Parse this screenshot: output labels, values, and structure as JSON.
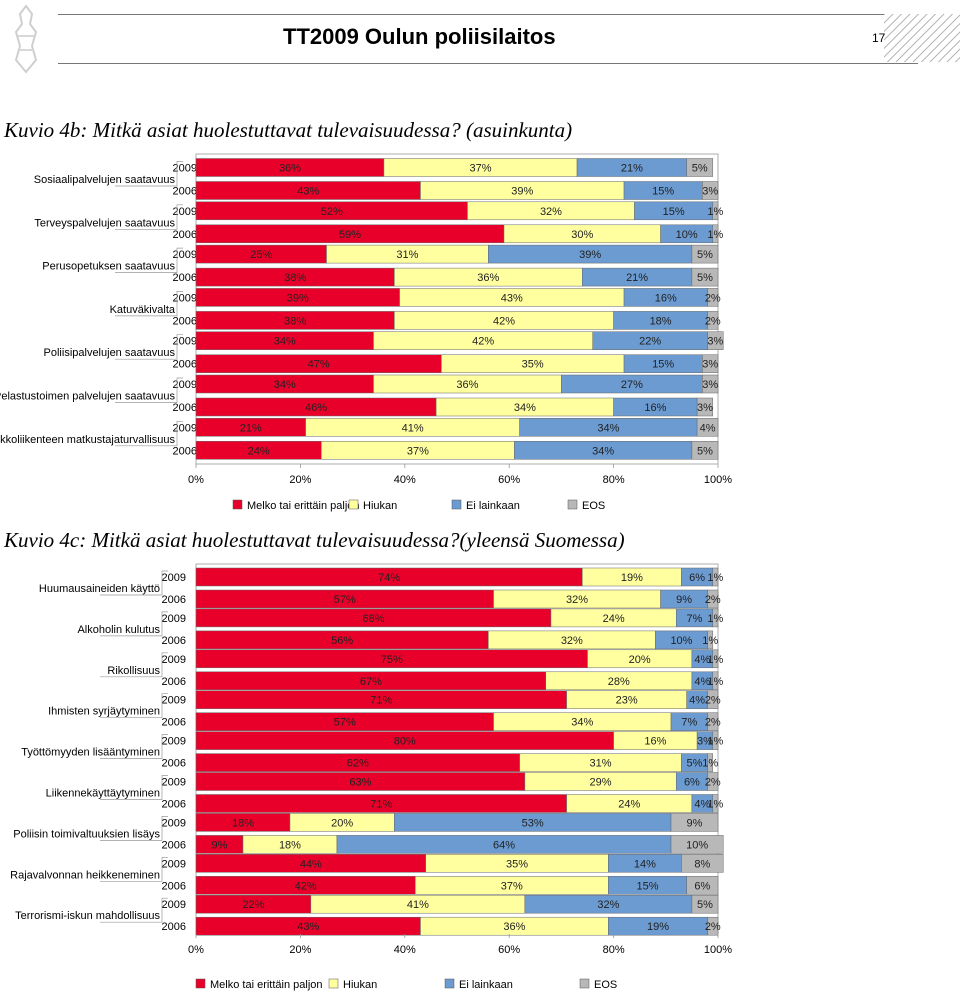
{
  "header": {
    "title": "TT2009 Oulun poliisilaitos",
    "page_number": "17",
    "logo_icon": "police-emblem-icon"
  },
  "charts": [
    {
      "title": "Kuvio 4b: Mitkä asiat huolestuttavat tulevaisuudessa? (asuinkunta)",
      "years": [
        "2009",
        "2006"
      ],
      "legend": [
        "Melko tai erittäin paljon",
        "Hiukan",
        "Ei lainkaan",
        "EOS"
      ]
    },
    {
      "title": "Kuvio 4c: Mitkä asiat huolestuttavat tulevaisuudessa?(yleensä Suomessa)",
      "years": [
        "2009",
        "2006"
      ],
      "legend": [
        "Melko tai erittäin paljon",
        "Hiukan",
        "Ei lainkaan",
        "EOS"
      ]
    }
  ],
  "colors": {
    "very_much": "#e8002a",
    "somewhat": "#ffffa0",
    "not_at_all": "#6b9bd1",
    "eos": "#b8b8b8"
  },
  "chart_data": [
    {
      "type": "bar",
      "orientation": "horizontal",
      "stacked": true,
      "title": "Kuvio 4b: Mitkä asiat huolestuttavat tulevaisuudessa? (asuinkunta)",
      "series_names": [
        "Melko tai erittäin paljon",
        "Hiukan",
        "Ei lainkaan",
        "EOS"
      ],
      "xlim": [
        0,
        100
      ],
      "x_ticks": [
        "0%",
        "20%",
        "40%",
        "60%",
        "80%",
        "100%"
      ],
      "legend_position": "bottom",
      "categories": [
        {
          "name": "Sosiaalipalvelujen saatavuus",
          "rows": [
            {
              "year": "2009",
              "values": [
                36,
                37,
                21,
                5
              ]
            },
            {
              "year": "2006",
              "values": [
                43,
                39,
                15,
                3
              ]
            }
          ]
        },
        {
          "name": "Terveyspalvelujen saatavuus",
          "rows": [
            {
              "year": "2009",
              "values": [
                52,
                32,
                15,
                1
              ]
            },
            {
              "year": "2006",
              "values": [
                59,
                30,
                10,
                1
              ]
            }
          ]
        },
        {
          "name": "Perusopetuksen saatavuus",
          "rows": [
            {
              "year": "2009",
              "values": [
                25,
                31,
                39,
                5
              ]
            },
            {
              "year": "2006",
              "values": [
                38,
                36,
                21,
                5
              ]
            }
          ]
        },
        {
          "name": "Katuväkivalta",
          "rows": [
            {
              "year": "2009",
              "values": [
                39,
                43,
                16,
                2
              ]
            },
            {
              "year": "2006",
              "values": [
                38,
                42,
                18,
                2
              ]
            }
          ]
        },
        {
          "name": "Poliisipalvelujen saatavuus",
          "rows": [
            {
              "year": "2009",
              "values": [
                34,
                42,
                22,
                3
              ]
            },
            {
              "year": "2006",
              "values": [
                47,
                35,
                15,
                3
              ]
            }
          ]
        },
        {
          "name": "Pelastustoimen palvelujen saatavuus",
          "rows": [
            {
              "year": "2009",
              "values": [
                34,
                36,
                27,
                3
              ]
            },
            {
              "year": "2006",
              "values": [
                46,
                34,
                16,
                3
              ]
            }
          ]
        },
        {
          "name": "Joukkoliikenteen matkustajaturvallisuus",
          "rows": [
            {
              "year": "2009",
              "values": [
                21,
                41,
                34,
                4
              ]
            },
            {
              "year": "2006",
              "values": [
                24,
                37,
                34,
                5
              ]
            }
          ]
        }
      ]
    },
    {
      "type": "bar",
      "orientation": "horizontal",
      "stacked": true,
      "title": "Kuvio 4c: Mitkä asiat huolestuttavat tulevaisuudessa?(yleensä Suomessa)",
      "series_names": [
        "Melko tai erittäin paljon",
        "Hiukan",
        "Ei lainkaan",
        "EOS"
      ],
      "xlim": [
        0,
        100
      ],
      "x_ticks": [
        "0%",
        "20%",
        "40%",
        "60%",
        "80%",
        "100%"
      ],
      "legend_position": "bottom",
      "categories": [
        {
          "name": "Huumausaineiden käyttö",
          "rows": [
            {
              "year": "2009",
              "values": [
                74,
                19,
                6,
                1
              ]
            },
            {
              "year": "2006",
              "values": [
                57,
                32,
                9,
                2
              ]
            }
          ]
        },
        {
          "name": "Alkoholin kulutus",
          "rows": [
            {
              "year": "2009",
              "values": [
                68,
                24,
                7,
                1
              ]
            },
            {
              "year": "2006",
              "values": [
                56,
                32,
                10,
                1
              ]
            }
          ]
        },
        {
          "name": "Rikollisuus",
          "rows": [
            {
              "year": "2009",
              "values": [
                75,
                20,
                4,
                1
              ]
            },
            {
              "year": "2006",
              "values": [
                67,
                28,
                4,
                1
              ]
            }
          ]
        },
        {
          "name": "Ihmisten syrjäytyminen",
          "rows": [
            {
              "year": "2009",
              "values": [
                71,
                23,
                4,
                2
              ]
            },
            {
              "year": "2006",
              "values": [
                57,
                34,
                7,
                2
              ]
            }
          ]
        },
        {
          "name": "Työttömyyden lisääntyminen",
          "rows": [
            {
              "year": "2009",
              "values": [
                80,
                16,
                3,
                1
              ]
            },
            {
              "year": "2006",
              "values": [
                62,
                31,
                5,
                1
              ]
            }
          ]
        },
        {
          "name": "Liikennekäyttäytyminen",
          "rows": [
            {
              "year": "2009",
              "values": [
                63,
                29,
                6,
                2
              ]
            },
            {
              "year": "2006",
              "values": [
                71,
                24,
                4,
                1
              ]
            }
          ]
        },
        {
          "name": "Poliisin toimivaltuuksien lisäys",
          "rows": [
            {
              "year": "2009",
              "values": [
                18,
                20,
                53,
                9
              ]
            },
            {
              "year": "2006",
              "values": [
                9,
                18,
                64,
                10
              ]
            }
          ]
        },
        {
          "name": "Rajavalvonnan heikkeneminen",
          "rows": [
            {
              "year": "2009",
              "values": [
                44,
                35,
                14,
                8
              ]
            },
            {
              "year": "2006",
              "values": [
                42,
                37,
                15,
                6
              ]
            }
          ]
        },
        {
          "name": "Terrorismi-iskun mahdollisuus",
          "rows": [
            {
              "year": "2009",
              "values": [
                22,
                41,
                32,
                5
              ]
            },
            {
              "year": "2006",
              "values": [
                43,
                36,
                19,
                2
              ]
            }
          ]
        }
      ]
    }
  ]
}
